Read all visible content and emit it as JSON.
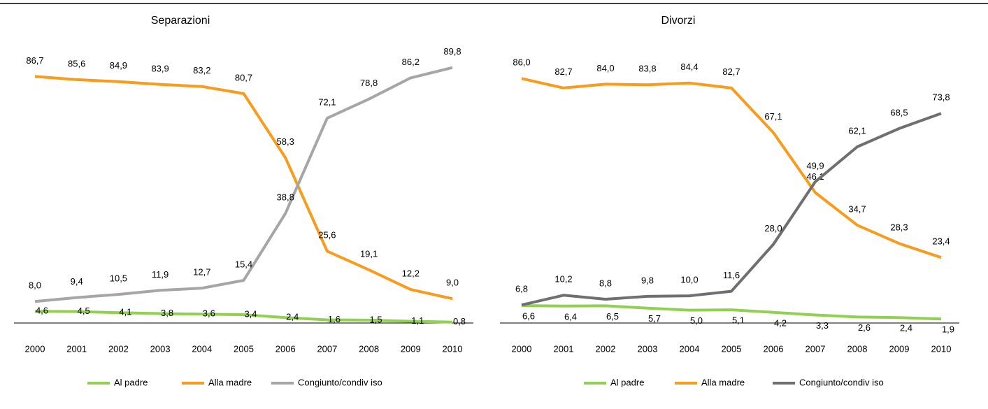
{
  "chart_data": [
    {
      "type": "line",
      "title": "Separazioni",
      "categories": [
        "2000",
        "2001",
        "2002",
        "2003",
        "2004",
        "2005",
        "2006",
        "2007",
        "2008",
        "2009",
        "2010"
      ],
      "ylim": [
        0,
        100
      ],
      "series": [
        {
          "name": "Al padre",
          "color": "#92d050",
          "values": [
            4.6,
            4.5,
            4.1,
            3.8,
            3.6,
            3.4,
            2.4,
            1.6,
            1.5,
            1.1,
            0.8
          ],
          "value_labels": [
            "4,6",
            "4,5",
            "4,1",
            "3,8",
            "3,6",
            "3,4",
            "2,4",
            "1,6",
            "1,5",
            "1,1",
            "0,8"
          ]
        },
        {
          "name": "Alla madre",
          "color": "#f79c1c",
          "values": [
            86.7,
            85.6,
            84.9,
            83.9,
            83.2,
            80.7,
            58.3,
            25.6,
            19.1,
            12.2,
            9.0
          ],
          "value_labels": [
            "86,7",
            "85,6",
            "84,9",
            "83,9",
            "83,2",
            "80,7",
            "58,3",
            "25,6",
            "19,1",
            "12,2",
            "9,0"
          ]
        },
        {
          "name": "Congiunto/condiv iso",
          "color": "#a6a6a6",
          "values": [
            8.0,
            9.4,
            10.5,
            11.9,
            12.7,
            15.4,
            38.8,
            72.1,
            78.8,
            86.2,
            89.8
          ],
          "value_labels": [
            "8,0",
            "9,4",
            "10,5",
            "11,9",
            "12,7",
            "15,4",
            "38,8",
            "72,1",
            "78,8",
            "86,2",
            "89,8"
          ]
        }
      ]
    },
    {
      "type": "line",
      "title": "Divorzi",
      "categories": [
        "2000",
        "2001",
        "2002",
        "2003",
        "2004",
        "2005",
        "2006",
        "2007",
        "2008",
        "2009",
        "2010"
      ],
      "ylim": [
        0,
        100
      ],
      "series": [
        {
          "name": "Al padre",
          "color": "#92d050",
          "values": [
            6.6,
            6.4,
            6.5,
            5.7,
            5.0,
            5.1,
            4.2,
            3.3,
            2.6,
            2.4,
            1.9
          ],
          "value_labels": [
            "6,6",
            "6,4",
            "6,5",
            "5,7",
            "5,0",
            "5,1",
            "4,2",
            "3,3",
            "2,6",
            "2,4",
            "1,9"
          ]
        },
        {
          "name": "Alla madre",
          "color": "#f79c1c",
          "values": [
            86.0,
            82.7,
            84.0,
            83.8,
            84.4,
            82.7,
            67.1,
            46.1,
            34.7,
            28.3,
            23.4
          ],
          "value_labels": [
            "86,0",
            "82,7",
            "84,0",
            "83,8",
            "84,4",
            "82,7",
            "67,1",
            "46,1",
            "34,7",
            "28,3",
            "23,4"
          ]
        },
        {
          "name": "Congiunto/condiv iso",
          "color": "#6f6f6f",
          "values": [
            6.8,
            10.2,
            8.8,
            9.8,
            10.0,
            11.6,
            28.0,
            49.9,
            62.1,
            68.5,
            73.8
          ],
          "value_labels": [
            "6,8",
            "10,2",
            "8,8",
            "9,8",
            "10,0",
            "11,6",
            "28,0",
            "49,9",
            "62,1",
            "68,5",
            "73,8"
          ]
        }
      ]
    }
  ]
}
